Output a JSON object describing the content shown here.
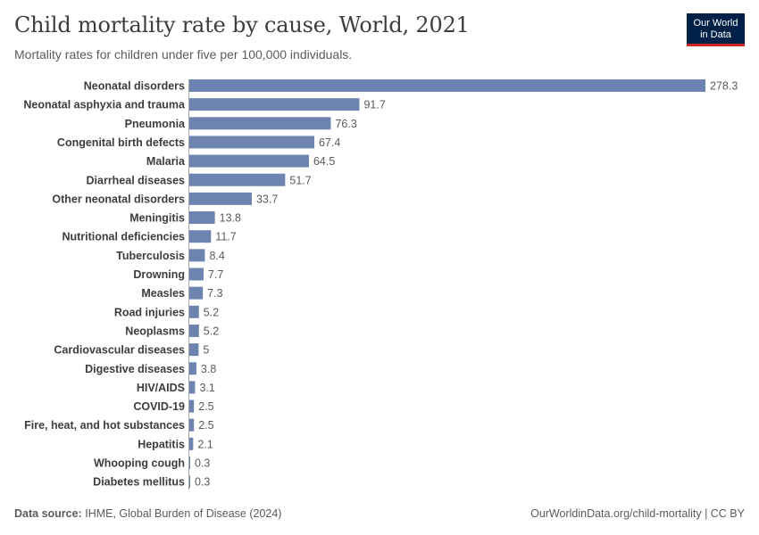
{
  "header": {
    "title": "Child mortality rate by cause, World, 2021",
    "subtitle": "Mortality rates for children under five per 100,000 individuals."
  },
  "logo": {
    "line1": "Our World",
    "line2": "in Data"
  },
  "footer": {
    "source_label": "Data source:",
    "source_text": "IHME, Global Burden of Disease (2024)",
    "url_license": "OurWorldinData.org/child-mortality | CC BY"
  },
  "colors": {
    "bar": "#6d84b1",
    "text": "#3d3d3d",
    "value_text": "#5b5b5b",
    "axis": "#aaaaaa",
    "logo_bg": "#002147",
    "logo_accent": "#ce261e"
  },
  "chart_data": {
    "type": "bar",
    "orientation": "horizontal",
    "title": "Child mortality rate by cause, World, 2021",
    "subtitle": "Mortality rates for children under five per 100,000 individuals.",
    "categories": [
      "Neonatal disorders",
      "Neonatal asphyxia and trauma",
      "Pneumonia",
      "Congenital birth defects",
      "Malaria",
      "Diarrheal diseases",
      "Other neonatal disorders",
      "Meningitis",
      "Nutritional deficiencies",
      "Tuberculosis",
      "Drowning",
      "Measles",
      "Road injuries",
      "Neoplasms",
      "Cardiovascular diseases",
      "Digestive diseases",
      "HIV/AIDS",
      "COVID-19",
      "Fire, heat, and hot substances",
      "Hepatitis",
      "Whooping cough",
      "Diabetes mellitus"
    ],
    "values": [
      278.3,
      91.7,
      76.3,
      67.4,
      64.5,
      51.7,
      33.7,
      13.8,
      11.7,
      8.4,
      7.7,
      7.3,
      5.2,
      5.2,
      5,
      3.8,
      3.1,
      2.5,
      2.5,
      2.1,
      0.3,
      0.3
    ],
    "value_labels": [
      "278.3",
      "91.7",
      "76.3",
      "67.4",
      "64.5",
      "51.7",
      "33.7",
      "13.8",
      "11.7",
      "8.4",
      "7.7",
      "7.3",
      "5.2",
      "5.2",
      "5",
      "3.8",
      "3.1",
      "2.5",
      "2.5",
      "2.1",
      "0.3",
      "0.3"
    ],
    "xlim": [
      0,
      278.3
    ],
    "grid": false,
    "legend": "none"
  }
}
